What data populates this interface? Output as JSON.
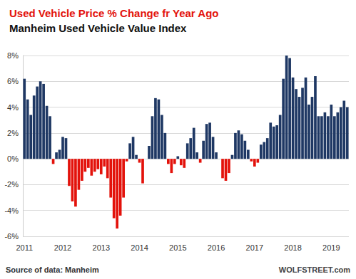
{
  "chart_data": {
    "type": "bar",
    "title": "Used Vehicle Price % Change fr Year Ago",
    "subtitle": "Manheim Used Vehicle Value Index",
    "annotations": [
      "Source of data: Manheim",
      "WOLFSTREET.com"
    ],
    "categories": [
      "2011",
      null,
      null,
      null,
      null,
      null,
      null,
      null,
      null,
      null,
      null,
      null,
      "2012",
      null,
      null,
      null,
      null,
      null,
      null,
      null,
      null,
      null,
      null,
      null,
      "2013",
      null,
      null,
      null,
      null,
      null,
      null,
      null,
      null,
      null,
      null,
      null,
      "2014",
      null,
      null,
      null,
      null,
      null,
      null,
      null,
      null,
      null,
      null,
      null,
      "2015",
      null,
      null,
      null,
      null,
      null,
      null,
      null,
      null,
      null,
      null,
      null,
      "2016",
      null,
      null,
      null,
      null,
      null,
      null,
      null,
      null,
      null,
      null,
      null,
      "2017",
      null,
      null,
      null,
      null,
      null,
      null,
      null,
      null,
      null,
      null,
      null,
      "2018",
      null,
      null,
      null,
      null,
      null,
      null,
      null,
      null,
      null,
      null,
      null,
      "2019",
      null,
      null,
      null,
      null,
      null
    ],
    "values": [
      6.2,
      4.6,
      3.4,
      4.9,
      5.6,
      6.0,
      5.8,
      4.1,
      3.3,
      -0.4,
      0.5,
      0.7,
      1.7,
      1.6,
      -2.1,
      -3.3,
      -3.7,
      -2.4,
      -1.7,
      -1.0,
      -0.7,
      -1.3,
      -1.0,
      -0.8,
      -1.2,
      -0.6,
      -1.5,
      -3.0,
      -4.6,
      -5.4,
      -4.4,
      -3.0,
      -0.2,
      1.2,
      1.7,
      0.3,
      -0.3,
      -1.9,
      0.0,
      1.0,
      3.3,
      4.7,
      4.6,
      3.4,
      2.0,
      -0.4,
      -1.1,
      -0.4,
      0.2,
      -0.5,
      -0.7,
      1.2,
      1.6,
      2.4,
      0.5,
      -0.3,
      1.4,
      2.7,
      2.8,
      1.7,
      0.5,
      0.0,
      -1.5,
      -1.7,
      -1.1,
      0.3,
      2.0,
      2.2,
      1.9,
      1.4,
      0.7,
      -0.2,
      -0.6,
      -0.3,
      1.1,
      1.3,
      1.6,
      2.8,
      2.5,
      2.6,
      3.4,
      6.2,
      8.0,
      7.8,
      6.3,
      5.4,
      4.8,
      5.5,
      6.3,
      4.2,
      4.8,
      6.4,
      3.3,
      3.3,
      3.6,
      3.3,
      4.2,
      3.3,
      3.6,
      4.0,
      4.5,
      4.0
    ],
    "colors": [
      "#1f3864",
      "#1f3864",
      "#1f3864",
      "#1f3864",
      "#1f3864",
      "#1f3864",
      "#1f3864",
      "#1f3864",
      "#1f3864",
      "#e3120b",
      "#1f3864",
      "#1f3864",
      "#1f3864",
      "#1f3864",
      "#e3120b",
      "#e3120b",
      "#e3120b",
      "#e3120b",
      "#e3120b",
      "#e3120b",
      "#e3120b",
      "#e3120b",
      "#e3120b",
      "#e3120b",
      "#e3120b",
      "#e3120b",
      "#e3120b",
      "#e3120b",
      "#e3120b",
      "#e3120b",
      "#e3120b",
      "#e3120b",
      "#e3120b",
      "#1f3864",
      "#1f3864",
      "#1f3864",
      "#e3120b",
      "#e3120b",
      "#1f3864",
      "#1f3864",
      "#1f3864",
      "#1f3864",
      "#1f3864",
      "#1f3864",
      "#1f3864",
      "#e3120b",
      "#e3120b",
      "#e3120b",
      "#1f3864",
      "#e3120b",
      "#e3120b",
      "#1f3864",
      "#1f3864",
      "#1f3864",
      "#1f3864",
      "#e3120b",
      "#1f3864",
      "#1f3864",
      "#1f3864",
      "#1f3864",
      "#1f3864",
      "#1f3864",
      "#e3120b",
      "#e3120b",
      "#e3120b",
      "#1f3864",
      "#1f3864",
      "#1f3864",
      "#1f3864",
      "#1f3864",
      "#1f3864",
      "#e3120b",
      "#e3120b",
      "#e3120b",
      "#1f3864",
      "#1f3864",
      "#1f3864",
      "#1f3864",
      "#1f3864",
      "#1f3864",
      "#1f3864",
      "#1f3864",
      "#1f3864",
      "#1f3864",
      "#1f3864",
      "#1f3864",
      "#1f3864",
      "#1f3864",
      "#1f3864",
      "#1f3864",
      "#1f3864",
      "#1f3864",
      "#1f3864",
      "#1f3864",
      "#1f3864",
      "#1f3864",
      "#1f3864",
      "#1f3864",
      "#1f3864",
      "#1f3864",
      "#1f3864",
      "#1f3864"
    ],
    "ylim": [
      -6,
      8
    ],
    "yticks": [
      {
        "value": -6,
        "label": "-6%"
      },
      {
        "value": -4,
        "label": "-4%"
      },
      {
        "value": -2,
        "label": "-2%"
      },
      {
        "value": 0,
        "label": "0%"
      },
      {
        "value": 2,
        "label": "2%"
      },
      {
        "value": 4,
        "label": "4%"
      },
      {
        "value": 6,
        "label": "6%"
      },
      {
        "value": 8,
        "label": "8%"
      }
    ],
    "grid": true
  }
}
